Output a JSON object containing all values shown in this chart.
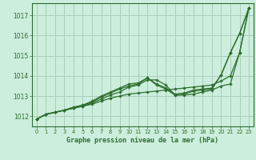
{
  "title": "Graphe pression niveau de la mer (hPa)",
  "bg_color": "#cceedd",
  "plot_bg_color": "#cceedd",
  "grid_color": "#aaccbb",
  "line_color": "#2d6e2d",
  "label_bg": "#cceedd",
  "xlim": [
    -0.5,
    23.5
  ],
  "ylim": [
    1011.5,
    1017.6
  ],
  "xticks": [
    0,
    1,
    2,
    3,
    4,
    5,
    6,
    7,
    8,
    9,
    10,
    11,
    12,
    13,
    14,
    15,
    16,
    17,
    18,
    19,
    20,
    21,
    22,
    23
  ],
  "yticks": [
    1012,
    1013,
    1014,
    1015,
    1016,
    1017
  ],
  "series": [
    [
      1011.85,
      1012.1,
      1012.2,
      1012.3,
      1012.4,
      1012.5,
      1012.6,
      1012.75,
      1012.9,
      1013.0,
      1013.1,
      1013.15,
      1013.2,
      1013.25,
      1013.3,
      1013.35,
      1013.4,
      1013.45,
      1013.5,
      1013.55,
      1013.75,
      1014.0,
      1015.15,
      1017.35
    ],
    [
      1011.85,
      1012.1,
      1012.2,
      1012.3,
      1012.4,
      1012.5,
      1012.65,
      1012.85,
      1013.05,
      1013.2,
      1013.45,
      1013.55,
      1013.8,
      1013.8,
      1013.55,
      1013.05,
      1013.05,
      1013.1,
      1013.2,
      1013.3,
      1013.5,
      1013.6,
      1015.15,
      1017.35
    ],
    [
      1011.85,
      1012.1,
      1012.2,
      1012.3,
      1012.45,
      1012.55,
      1012.7,
      1012.95,
      1013.15,
      1013.35,
      1013.5,
      1013.6,
      1013.9,
      1013.55,
      1013.35,
      1013.05,
      1013.1,
      1013.25,
      1013.3,
      1013.35,
      1014.05,
      1015.15,
      1016.1,
      1017.35
    ],
    [
      1011.85,
      1012.1,
      1012.2,
      1012.3,
      1012.45,
      1012.55,
      1012.75,
      1013.0,
      1013.2,
      1013.4,
      1013.6,
      1013.65,
      1013.9,
      1013.6,
      1013.4,
      1013.1,
      1013.15,
      1013.3,
      1013.35,
      1013.4,
      1014.05,
      1015.15,
      1016.1,
      1017.35
    ]
  ]
}
